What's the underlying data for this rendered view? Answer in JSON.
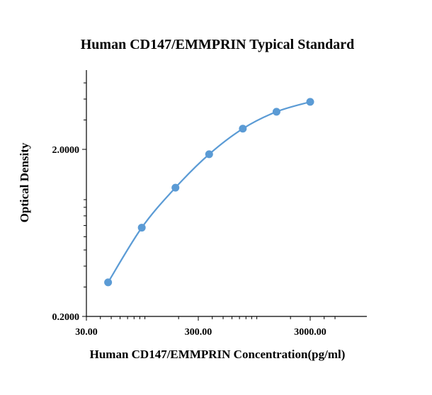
{
  "chart_data": {
    "type": "scatter",
    "title": "Human CD147/EMMPRIN Typical Standard",
    "xlabel": "Human CD147/EMMPRIN Concentration(pg/ml)",
    "ylabel": "Optical Density",
    "x_scale": "log",
    "y_scale": "log",
    "xlim": [
      30,
      5000
    ],
    "ylim": [
      0.2,
      3.5
    ],
    "x_ticks": [
      {
        "value": 30,
        "label": "30.00"
      },
      {
        "value": 300,
        "label": "300.00"
      },
      {
        "value": 3000,
        "label": "3000.00"
      }
    ],
    "y_ticks": [
      {
        "value": 0.2,
        "label": "0.2000"
      },
      {
        "value": 2,
        "label": "2.0000"
      }
    ],
    "grid": false,
    "legend": "none",
    "series": [
      {
        "x": [
          46.88,
          93.75,
          187.5,
          375,
          750,
          1500,
          3000
        ],
        "y": [
          0.32,
          0.68,
          1.18,
          1.87,
          2.66,
          3.36,
          3.85
        ],
        "color": "#5B9BD5",
        "smooth_line": true
      }
    ]
  }
}
